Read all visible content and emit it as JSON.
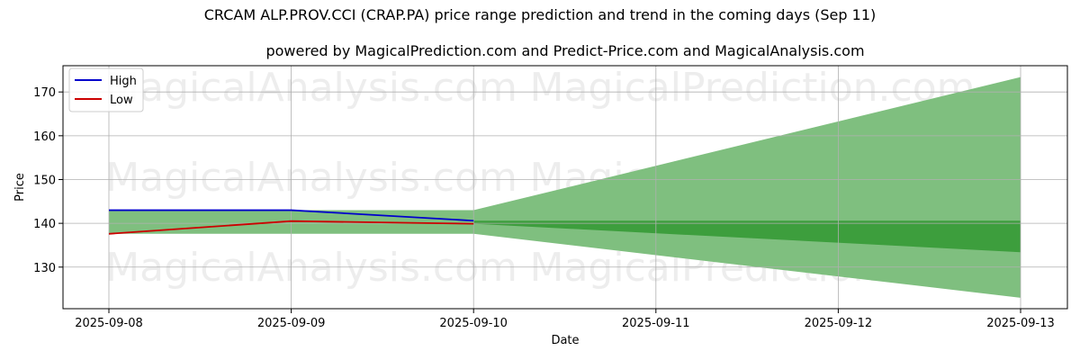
{
  "chart_data": {
    "type": "line",
    "title": "CRCAM ALP.PROV.CCI (CRAP.PA) price range prediction and trend in the coming days (Sep 11)",
    "subtitle": "powered by MagicalPrediction.com and Predict-Price.com and MagicalAnalysis.com",
    "xlabel": "Date",
    "ylabel": "Price",
    "x": [
      "2025-09-08",
      "2025-09-09",
      "2025-09-10",
      "2025-09-11",
      "2025-09-12",
      "2025-09-13"
    ],
    "ylim": [
      120.5,
      176
    ],
    "yticks": [
      130,
      140,
      150,
      160,
      170
    ],
    "grid": true,
    "legend_position": "top-left",
    "series": [
      {
        "name": "High",
        "color": "#0000cc",
        "x": [
          "2025-09-08",
          "2025-09-09",
          "2025-09-10"
        ],
        "values": [
          143.0,
          143.0,
          140.6
        ]
      },
      {
        "name": "Low",
        "color": "#cc0000",
        "x": [
          "2025-09-08",
          "2025-09-09",
          "2025-09-10"
        ],
        "values": [
          137.6,
          140.5,
          139.9
        ]
      }
    ],
    "historical_band": {
      "color": "#7fbf7f",
      "x": [
        "2025-09-08",
        "2025-09-09",
        "2025-09-10"
      ],
      "upper": [
        143.0,
        143.0,
        143.0
      ],
      "lower": [
        137.6,
        137.6,
        137.6
      ]
    },
    "forecast_outer_band": {
      "color": "#7fbf7f",
      "x": [
        "2025-09-10",
        "2025-09-13"
      ],
      "upper": [
        143.0,
        173.4
      ],
      "lower": [
        137.6,
        123.0
      ]
    },
    "forecast_inner_band": {
      "color": "#3d9e3d",
      "x": [
        "2025-09-10",
        "2025-09-13"
      ],
      "upper": [
        140.6,
        140.6
      ],
      "lower": [
        139.9,
        133.4
      ]
    }
  },
  "watermarks": [
    "MagicalAnalysis.com",
    "MagicalPrediction.com",
    "MagicalAnalysis.com",
    "MagicalPrediction.com",
    "MagicalAnalysis.com",
    "MagicalPrediction.com"
  ]
}
